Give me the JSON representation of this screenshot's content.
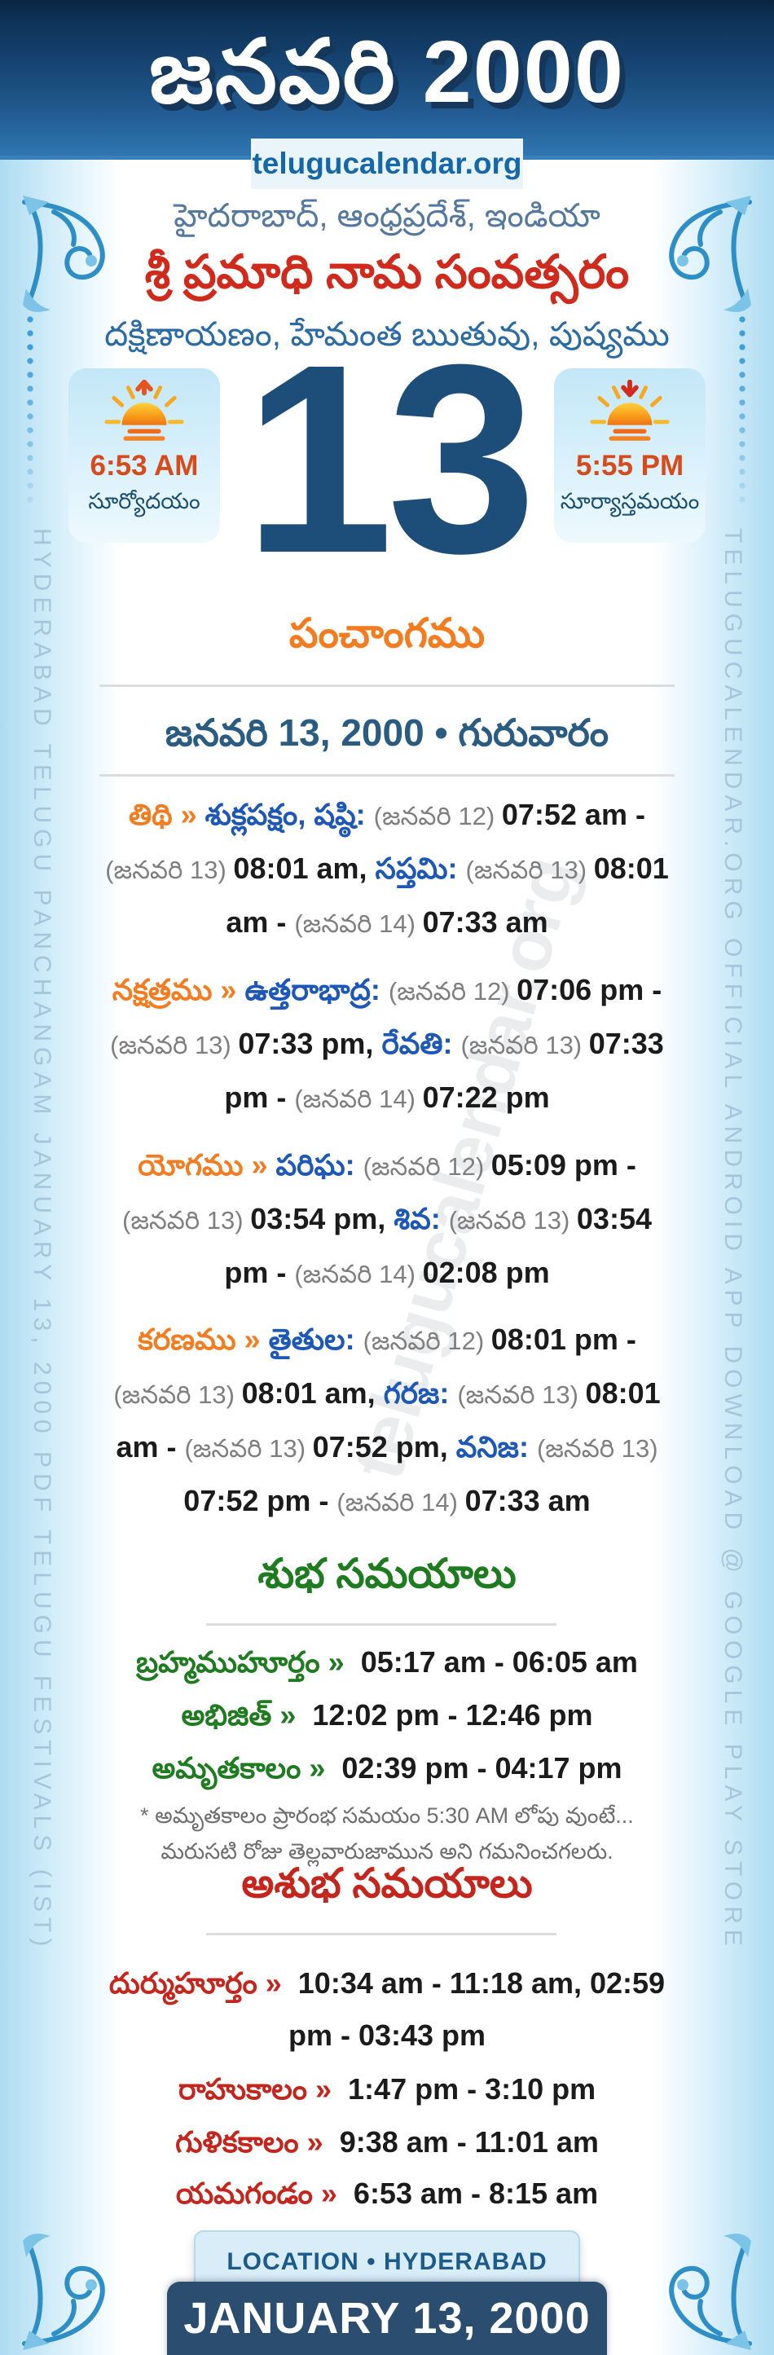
{
  "header": {
    "title": "జనవరి 2000",
    "site": "telugucalendar.org"
  },
  "intro": {
    "region": "హైదరాబాద్, ఆంధ్రప్రదేశ్, ఇండియా",
    "samvatsaram": "శ్రీ ప్రమాధి నామ సంవత్సరం",
    "ayana_rutuvu_masam": "దక్షిణాయణం, హేమంత ఋతువు, పుష్యము"
  },
  "day": {
    "number": "13",
    "sunrise": {
      "icon": "sunrise-icon",
      "time": "6:53 AM",
      "label": "సూర్యోదయం"
    },
    "sunset": {
      "icon": "sunset-icon",
      "time": "5:55 PM",
      "label": "సూర్యాస్తమయం"
    }
  },
  "panchangam": {
    "heading": "పంచాంగము",
    "date_heading": "జనవరి 13, 2000 • గురువారం",
    "rows": [
      {
        "key": "tithi",
        "segments": [
          {
            "t": "తిథి » ",
            "c": "label"
          },
          {
            "t": "శుక్లపక్షం, షష్ఠి: ",
            "c": "name"
          },
          {
            "t": "(జనవరి 12) ",
            "c": "date"
          },
          {
            "t": "07:52 am - ",
            "c": "time"
          },
          {
            "t": "(జనవరి 13) ",
            "c": "date"
          },
          {
            "t": "08:01 am, ",
            "c": "time"
          },
          {
            "t": "సప్తమి: ",
            "c": "name"
          },
          {
            "t": "(జనవరి 13) ",
            "c": "date"
          },
          {
            "t": "08:01 am - ",
            "c": "time"
          },
          {
            "t": "(జనవరి 14) ",
            "c": "date"
          },
          {
            "t": "07:33 am",
            "c": "time"
          }
        ]
      },
      {
        "key": "nakshatram",
        "segments": [
          {
            "t": "నక్షత్రము » ",
            "c": "label"
          },
          {
            "t": "ఉత్తరాభాద్ర: ",
            "c": "name"
          },
          {
            "t": "(జనవరి 12) ",
            "c": "date"
          },
          {
            "t": "07:06 pm - ",
            "c": "time"
          },
          {
            "t": "(జనవరి 13) ",
            "c": "date"
          },
          {
            "t": "07:33 pm, ",
            "c": "time"
          },
          {
            "t": "రేవతి: ",
            "c": "name"
          },
          {
            "t": "(జనవరి 13) ",
            "c": "date"
          },
          {
            "t": "07:33 pm - ",
            "c": "time"
          },
          {
            "t": "(జనవరి 14) ",
            "c": "date"
          },
          {
            "t": "07:22 pm",
            "c": "time"
          }
        ]
      },
      {
        "key": "yogam",
        "segments": [
          {
            "t": "యోగము » ",
            "c": "label"
          },
          {
            "t": "పరిఘ: ",
            "c": "name"
          },
          {
            "t": "(జనవరి 12) ",
            "c": "date"
          },
          {
            "t": "05:09 pm - ",
            "c": "time"
          },
          {
            "t": "(జనవరి 13) ",
            "c": "date"
          },
          {
            "t": "03:54 pm, ",
            "c": "time"
          },
          {
            "t": "శివ: ",
            "c": "name"
          },
          {
            "t": "(జనవరి 13) ",
            "c": "date"
          },
          {
            "t": "03:54 pm - ",
            "c": "time"
          },
          {
            "t": "(జనవరి 14) ",
            "c": "date"
          },
          {
            "t": "02:08 pm",
            "c": "time"
          }
        ]
      },
      {
        "key": "karanam",
        "segments": [
          {
            "t": "కరణము » ",
            "c": "label"
          },
          {
            "t": "తైతుల: ",
            "c": "name"
          },
          {
            "t": "(జనవరి 12) ",
            "c": "date"
          },
          {
            "t": "08:01 pm - ",
            "c": "time"
          },
          {
            "t": "(జనవరి 13) ",
            "c": "date"
          },
          {
            "t": "08:01 am, ",
            "c": "time"
          },
          {
            "t": "గరజ: ",
            "c": "name"
          },
          {
            "t": "(జనవరి 13) ",
            "c": "date"
          },
          {
            "t": "08:01 am - ",
            "c": "time"
          },
          {
            "t": "(జనవరి 13) ",
            "c": "date"
          },
          {
            "t": "07:52 pm, ",
            "c": "time"
          },
          {
            "t": "వనిజ: ",
            "c": "name"
          },
          {
            "t": "(జనవరి 13) ",
            "c": "date"
          },
          {
            "t": "07:52 pm - ",
            "c": "time"
          },
          {
            "t": "(జనవరి 14) ",
            "c": "date"
          },
          {
            "t": "07:33 am",
            "c": "time"
          }
        ]
      }
    ]
  },
  "shubha": {
    "heading": "శుభ సమయాలు",
    "rows": [
      {
        "label": "బ్రహ్మముహూర్తం »",
        "value": "05:17 am - 06:05 am"
      },
      {
        "label": "అభిజిత్ »",
        "value": "12:02 pm - 12:46 pm"
      },
      {
        "label": "అమృతకాలం »",
        "value": "02:39 pm - 04:17 pm"
      }
    ],
    "note": "* అమృతకాలం ప్రారంభ సమయం 5:30 AM లోపు వుంటే... మరుసటి రోజు తెల్లవారుజామున అని గమనించగలరు."
  },
  "ashubha": {
    "heading": "అశుభ సమయాలు",
    "rows": [
      {
        "label": "దుర్ముహూర్తం »",
        "value": "10:34 am - 11:18 am, 02:59 pm - 03:43 pm"
      },
      {
        "label": "రాహుకాలం »",
        "value": "1:47 pm - 3:10 pm"
      },
      {
        "label": "గుళికకాలం »",
        "value": "9:38 am - 11:01 am"
      },
      {
        "label": "యమగండం »",
        "value": "6:53 am - 8:15 am"
      }
    ]
  },
  "footer": {
    "location": "LOCATION • HYDERABAD",
    "date": "JANUARY 13, 2000"
  },
  "sidebars": {
    "left": "HYDERABAD TELUGU PANCHANGAM JANUARY 13, 2000 PDF TELUGU FESTIVALS (IST)",
    "right": "TELUGUCALENDAR.ORG OFFICIAL ANDROID APP DOWNLOAD @ GOOGLE PLAY STORE"
  },
  "watermark": "telugucalendar.org",
  "colors": {
    "header_navy": "#0e3257",
    "header_blue": "#2e77b2",
    "accent_orange": "#f47c20",
    "name_blue": "#1d58b8",
    "date_gray": "#7f7f7f",
    "green": "#1e7b1f",
    "red": "#c4261d",
    "samvatsaram_red": "#cf2a1b",
    "day_navy": "#1d4e79",
    "sun_time_red": "#d64a1c",
    "footer_navy": "#2b4e70"
  }
}
